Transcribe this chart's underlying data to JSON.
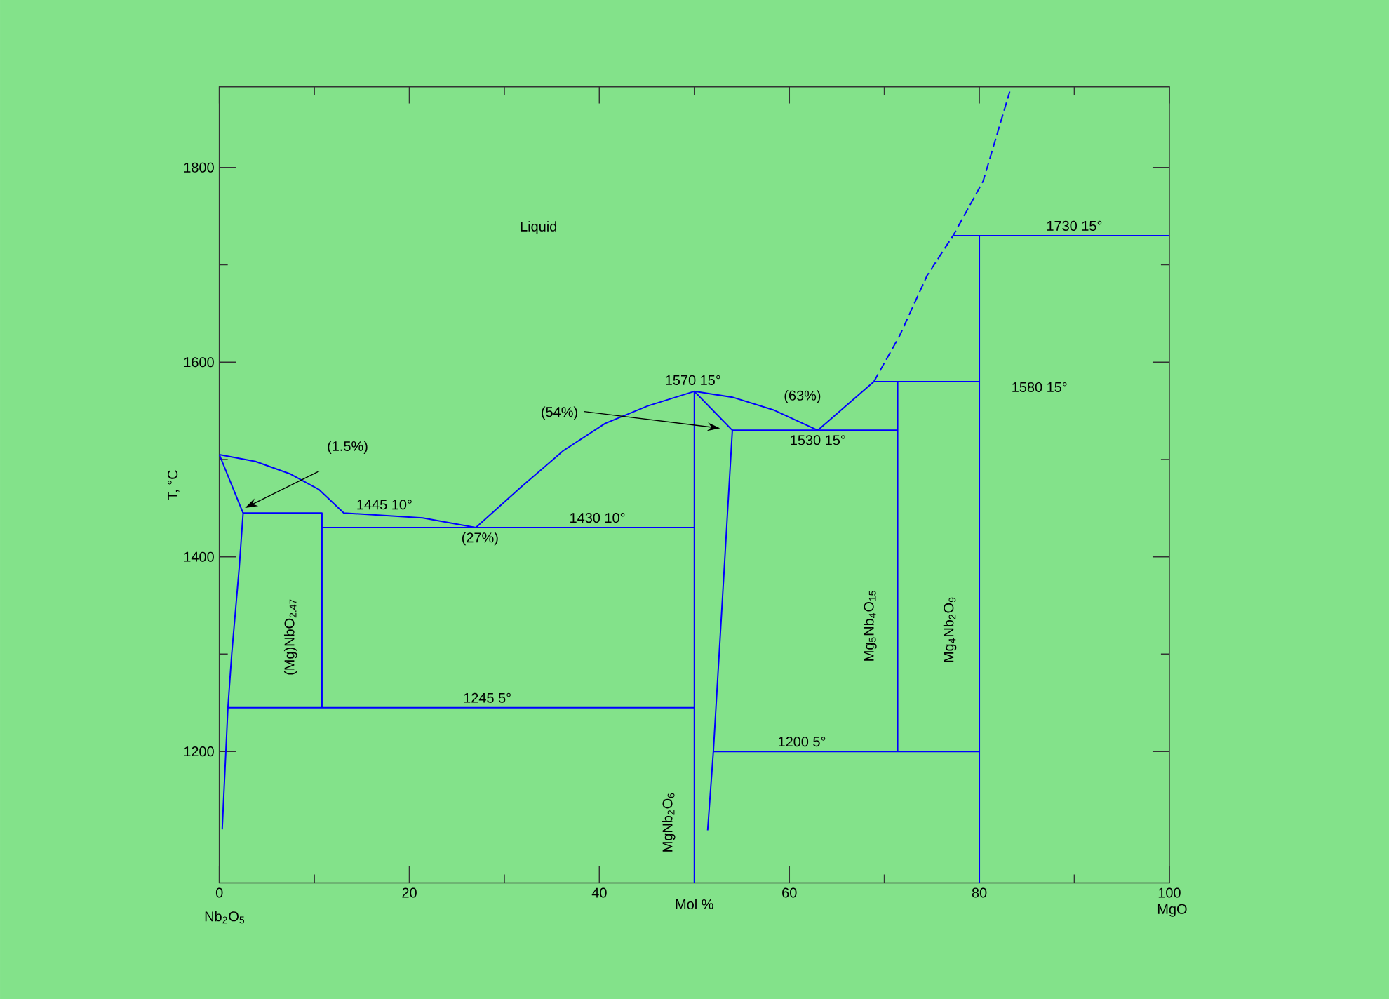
{
  "chart_data": {
    "type": "line",
    "xlabel": "Mol %",
    "ylabel": "T, °C",
    "xlim": [
      0,
      100
    ],
    "ylim": [
      1065,
      1883
    ],
    "xticks": [
      0,
      {
        "value": 10,
        "label": null
      },
      20,
      {
        "value": 30,
        "label": null
      },
      40,
      {
        "value": 50,
        "label": null
      },
      60,
      {
        "value": 70,
        "label": null
      },
      80,
      {
        "value": 90,
        "label": null
      },
      100
    ],
    "yticks": [
      1200,
      {
        "value": 1300,
        "label": null
      },
      1400,
      {
        "value": 1500,
        "label": null
      },
      1600,
      {
        "value": 1700,
        "label": null
      },
      1800
    ],
    "marker": "none",
    "line_style": "solid",
    "series": [
      {
        "color": "#0000ff",
        "x": [
          0,
          3.8,
          7.5,
          10.5,
          13.1,
          21.4,
          27,
          31.8,
          36.2,
          40.6,
          45.1,
          50,
          54,
          58.3,
          63,
          68.9
        ],
        "values": [
          1505,
          1498,
          1485,
          1469,
          1445,
          1440,
          1430,
          1472,
          1509,
          1537,
          1555,
          1570,
          1564,
          1551,
          1530,
          1580
        ]
      },
      {
        "color": "#0000ff",
        "line_style": "dashed",
        "x": [
          68.9,
          71.6,
          74.5,
          77.3,
          80.4,
          83.2
        ],
        "values": [
          1580,
          1627,
          1689,
          1731,
          1786,
          1878
        ]
      },
      {
        "color": "#0000ff",
        "x": [
          0,
          2.5,
          2.1,
          1.3,
          0.9,
          0.3
        ],
        "values": [
          1505,
          1445,
          1390,
          1300,
          1245,
          1120
        ]
      },
      {
        "color": "#0000ff",
        "x": [
          50,
          54,
          53.2,
          52,
          51.4
        ],
        "values": [
          1570,
          1530,
          1397,
          1200,
          1119
        ]
      },
      {
        "color": "#0000ff",
        "x": [
          2.5,
          10.8,
          10.8
        ],
        "values": [
          1445,
          1445,
          1245
        ]
      },
      {
        "color": "#0000ff",
        "x": [
          10.8,
          50
        ],
        "values": [
          1430,
          1430
        ]
      },
      {
        "color": "#0000ff",
        "x": [
          0.9,
          50
        ],
        "values": [
          1245,
          1245
        ]
      },
      {
        "color": "#0000ff",
        "x": [
          50,
          50
        ],
        "values": [
          1570,
          1065
        ]
      },
      {
        "color": "#0000ff",
        "x": [
          54,
          71.4
        ],
        "values": [
          1530,
          1530
        ]
      },
      {
        "color": "#0000ff",
        "x": [
          71.4,
          71.4
        ],
        "values": [
          1580,
          1200
        ]
      },
      {
        "color": "#0000ff",
        "x": [
          68.9,
          80
        ],
        "values": [
          1580,
          1580
        ]
      },
      {
        "color": "#0000ff",
        "x": [
          52,
          80
        ],
        "values": [
          1200,
          1200
        ]
      },
      {
        "color": "#0000ff",
        "x": [
          80,
          80
        ],
        "values": [
          1730,
          1065
        ]
      },
      {
        "color": "#0000ff",
        "x": [
          77.3,
          100
        ],
        "values": [
          1730,
          1730
        ]
      }
    ],
    "annotations": [
      "Liquid",
      "(1.5%)",
      "(54%)",
      {
        "text": "1445  10°",
        "x": 13.1,
        "y": 1445
      },
      {
        "text": "(27%)",
        "x": 27,
        "y": 1430
      },
      {
        "text": "1430  10°",
        "x": 39.5,
        "y": 1430
      },
      {
        "text": "1245  5°",
        "x": 28.5,
        "y": 1245
      },
      {
        "text": "1570  15°",
        "x": 50,
        "y": 1570
      },
      {
        "text": "(63%)",
        "x": 63,
        "y": 1530
      },
      {
        "text": "1530  15°",
        "x": 63,
        "y": 1530
      },
      {
        "text": "1580  15°",
        "x": 80,
        "y": 1580
      },
      {
        "text": "1730  15°",
        "x": 90,
        "y": 1730
      },
      {
        "text": "1200  5°",
        "x": 62.2,
        "y": 1200
      },
      "(Mg)NbO$_{2.47}$",
      "MgNb$_{2}$O$_{6}$",
      "Mg$_{5}$Nb$_{4}$O$_{15}$",
      "Mg$_{4}$Nb$_{2}$O$_{9}$",
      "Nb$_{2}$O$_{5}$",
      "MgO"
    ]
  }
}
